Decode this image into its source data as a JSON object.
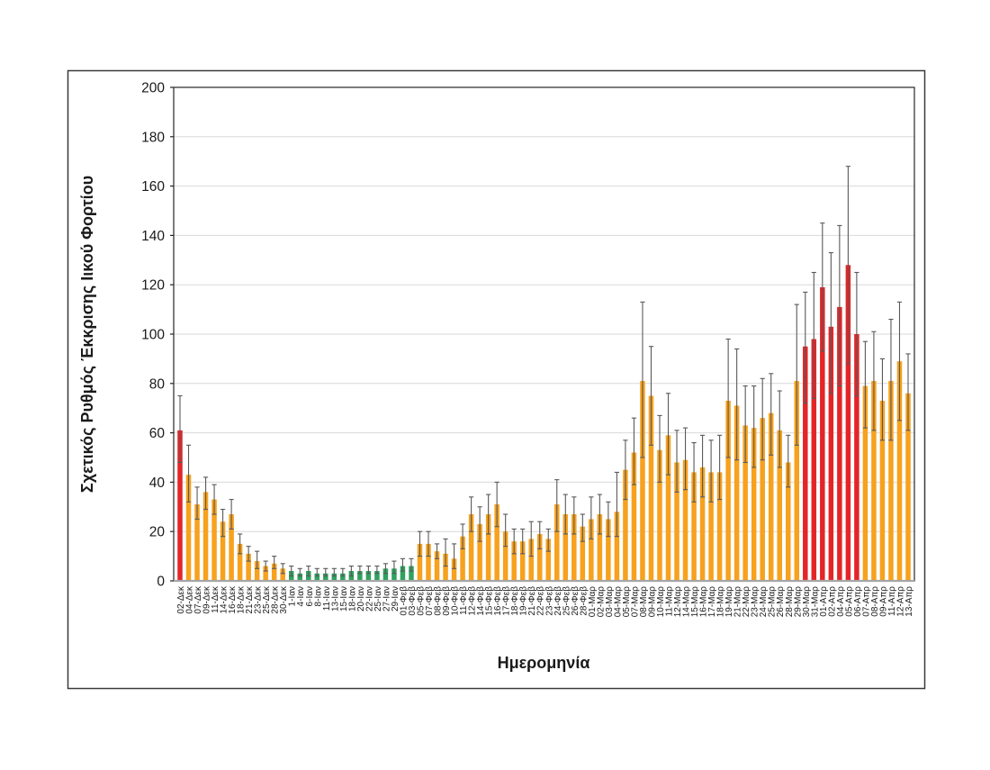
{
  "page": {
    "background": "#ffffff"
  },
  "figure": {
    "border_color": "#3a3a3a",
    "background": "#ffffff"
  },
  "chart_data": {
    "type": "bar",
    "title": "",
    "xlabel": "Ημερομηνία",
    "ylabel": "Σχετικός Ρυθμός Έκκρισης Ιικού Φορτίου",
    "ylim": [
      0,
      200
    ],
    "ytick_step": 20,
    "grid": true,
    "legend_position": "none",
    "error_bars": true,
    "bar_colors": {
      "red": "#E42528",
      "orange": "#F7A11D",
      "green": "#2EA25E"
    },
    "error_bar_color": "#595959",
    "grid_color": "#d9d9d9",
    "axis_color": "#262626",
    "x_axis_line_color": "#a6a6a6",
    "text_color": "#1a1a1a",
    "points": [
      {
        "label": "02-Δεκ",
        "value": 61,
        "lo": 48,
        "hi": 75,
        "color": "red"
      },
      {
        "label": "04-Δεκ",
        "value": 43,
        "lo": 32,
        "hi": 55,
        "color": "orange"
      },
      {
        "label": "07-Δεκ",
        "value": 31,
        "lo": 25,
        "hi": 38,
        "color": "orange"
      },
      {
        "label": "09-Δεκ",
        "value": 36,
        "lo": 29,
        "hi": 42,
        "color": "orange"
      },
      {
        "label": "11-Δεκ",
        "value": 33,
        "lo": 27,
        "hi": 39,
        "color": "orange"
      },
      {
        "label": "14-Δεκ",
        "value": 24,
        "lo": 18,
        "hi": 29,
        "color": "orange"
      },
      {
        "label": "16-Δεκ",
        "value": 27,
        "lo": 21,
        "hi": 33,
        "color": "orange"
      },
      {
        "label": "18-Δεκ",
        "value": 15,
        "lo": 11,
        "hi": 19,
        "color": "orange"
      },
      {
        "label": "21-Δεκ",
        "value": 11,
        "lo": 8,
        "hi": 14,
        "color": "orange"
      },
      {
        "label": "23-Δεκ",
        "value": 8,
        "lo": 5,
        "hi": 12,
        "color": "orange"
      },
      {
        "label": "25-Δεκ",
        "value": 6,
        "lo": 4,
        "hi": 8,
        "color": "orange"
      },
      {
        "label": "28-Δεκ",
        "value": 7,
        "lo": 5,
        "hi": 10,
        "color": "orange"
      },
      {
        "label": "30-Δεκ",
        "value": 5,
        "lo": 3,
        "hi": 7,
        "color": "orange"
      },
      {
        "label": "1-Ιαν",
        "value": 4,
        "lo": 2,
        "hi": 6,
        "color": "green"
      },
      {
        "label": "4-Ιαν",
        "value": 3,
        "lo": 2,
        "hi": 5,
        "color": "green"
      },
      {
        "label": "6-Ιαν",
        "value": 4,
        "lo": 2,
        "hi": 6,
        "color": "green"
      },
      {
        "label": "8-Ιαν",
        "value": 3,
        "lo": 2,
        "hi": 5,
        "color": "green"
      },
      {
        "label": "11-Ιαν",
        "value": 3,
        "lo": 2,
        "hi": 5,
        "color": "green"
      },
      {
        "label": "13-Ιαν",
        "value": 3,
        "lo": 2,
        "hi": 5,
        "color": "green"
      },
      {
        "label": "15-Ιαν",
        "value": 3,
        "lo": 2,
        "hi": 5,
        "color": "green"
      },
      {
        "label": "18-Ιαν",
        "value": 4,
        "lo": 2,
        "hi": 6,
        "color": "green"
      },
      {
        "label": "20-Ιαν",
        "value": 4,
        "lo": 3,
        "hi": 6,
        "color": "green"
      },
      {
        "label": "22-Ιαν",
        "value": 4,
        "lo": 3,
        "hi": 6,
        "color": "green"
      },
      {
        "label": "25-Ιαν",
        "value": 4,
        "lo": 3,
        "hi": 6,
        "color": "green"
      },
      {
        "label": "27-Ιαν",
        "value": 5,
        "lo": 3,
        "hi": 7,
        "color": "green"
      },
      {
        "label": "29-Ιαν",
        "value": 5,
        "lo": 3,
        "hi": 8,
        "color": "green"
      },
      {
        "label": "01-Φεβ",
        "value": 6,
        "lo": 4,
        "hi": 9,
        "color": "green"
      },
      {
        "label": "03-Φεβ",
        "value": 6,
        "lo": 4,
        "hi": 9,
        "color": "green"
      },
      {
        "label": "05-Φεβ",
        "value": 15,
        "lo": 10,
        "hi": 20,
        "color": "orange"
      },
      {
        "label": "07-Φεβ",
        "value": 15,
        "lo": 10,
        "hi": 20,
        "color": "orange"
      },
      {
        "label": "08-Φεβ",
        "value": 12,
        "lo": 9,
        "hi": 15,
        "color": "orange"
      },
      {
        "label": "09-Φεβ",
        "value": 11,
        "lo": 6,
        "hi": 17,
        "color": "orange"
      },
      {
        "label": "10-Φεβ",
        "value": 9,
        "lo": 5,
        "hi": 15,
        "color": "orange"
      },
      {
        "label": "11-Φεβ",
        "value": 18,
        "lo": 13,
        "hi": 23,
        "color": "orange"
      },
      {
        "label": "12-Φεβ",
        "value": 27,
        "lo": 20,
        "hi": 34,
        "color": "orange"
      },
      {
        "label": "14-Φεβ",
        "value": 23,
        "lo": 16,
        "hi": 30,
        "color": "orange"
      },
      {
        "label": "15-Φεβ",
        "value": 27,
        "lo": 19,
        "hi": 35,
        "color": "orange"
      },
      {
        "label": "16-Φεβ",
        "value": 31,
        "lo": 22,
        "hi": 40,
        "color": "orange"
      },
      {
        "label": "17-Φεβ",
        "value": 20,
        "lo": 14,
        "hi": 27,
        "color": "orange"
      },
      {
        "label": "18-Φεβ",
        "value": 16,
        "lo": 11,
        "hi": 21,
        "color": "orange"
      },
      {
        "label": "19-Φεβ",
        "value": 16,
        "lo": 11,
        "hi": 21,
        "color": "orange"
      },
      {
        "label": "21-Φεβ",
        "value": 17,
        "lo": 10,
        "hi": 24,
        "color": "orange"
      },
      {
        "label": "22-Φεβ",
        "value": 19,
        "lo": 13,
        "hi": 24,
        "color": "orange"
      },
      {
        "label": "23-Φεβ",
        "value": 17,
        "lo": 12,
        "hi": 21,
        "color": "orange"
      },
      {
        "label": "24-Φεβ",
        "value": 31,
        "lo": 20,
        "hi": 41,
        "color": "orange"
      },
      {
        "label": "25-Φεβ",
        "value": 27,
        "lo": 19,
        "hi": 35,
        "color": "orange"
      },
      {
        "label": "26-Φεβ",
        "value": 27,
        "lo": 19,
        "hi": 34,
        "color": "orange"
      },
      {
        "label": "28-Φεβ",
        "value": 22,
        "lo": 16,
        "hi": 27,
        "color": "orange"
      },
      {
        "label": "01-Μαρ",
        "value": 25,
        "lo": 17,
        "hi": 34,
        "color": "orange"
      },
      {
        "label": "02-Μαρ",
        "value": 27,
        "lo": 19,
        "hi": 35,
        "color": "orange"
      },
      {
        "label": "03-Μαρ",
        "value": 25,
        "lo": 18,
        "hi": 32,
        "color": "orange"
      },
      {
        "label": "04-Μαρ",
        "value": 28,
        "lo": 18,
        "hi": 44,
        "color": "orange"
      },
      {
        "label": "05-Μαρ",
        "value": 45,
        "lo": 33,
        "hi": 57,
        "color": "orange"
      },
      {
        "label": "07-Μαρ",
        "value": 52,
        "lo": 39,
        "hi": 66,
        "color": "orange"
      },
      {
        "label": "08-Μαρ",
        "value": 81,
        "lo": 50,
        "hi": 113,
        "color": "orange"
      },
      {
        "label": "09-Μαρ",
        "value": 75,
        "lo": 55,
        "hi": 95,
        "color": "orange"
      },
      {
        "label": "10-Μαρ",
        "value": 53,
        "lo": 40,
        "hi": 67,
        "color": "orange"
      },
      {
        "label": "11-Μαρ",
        "value": 59,
        "lo": 43,
        "hi": 76,
        "color": "orange"
      },
      {
        "label": "12-Μαρ",
        "value": 48,
        "lo": 36,
        "hi": 61,
        "color": "orange"
      },
      {
        "label": "14-Μαρ",
        "value": 49,
        "lo": 37,
        "hi": 62,
        "color": "orange"
      },
      {
        "label": "15-Μαρ",
        "value": 44,
        "lo": 32,
        "hi": 56,
        "color": "orange"
      },
      {
        "label": "16-Μαρ",
        "value": 46,
        "lo": 34,
        "hi": 59,
        "color": "orange"
      },
      {
        "label": "17-Μαρ",
        "value": 44,
        "lo": 32,
        "hi": 57,
        "color": "orange"
      },
      {
        "label": "18-Μαρ",
        "value": 44,
        "lo": 33,
        "hi": 59,
        "color": "orange"
      },
      {
        "label": "19-Μαρ",
        "value": 73,
        "lo": 50,
        "hi": 98,
        "color": "orange"
      },
      {
        "label": "21-Μαρ",
        "value": 71,
        "lo": 49,
        "hi": 94,
        "color": "orange"
      },
      {
        "label": "22-Μαρ",
        "value": 63,
        "lo": 48,
        "hi": 79,
        "color": "orange"
      },
      {
        "label": "23-Μαρ",
        "value": 62,
        "lo": 46,
        "hi": 79,
        "color": "orange"
      },
      {
        "label": "24-Μαρ",
        "value": 66,
        "lo": 49,
        "hi": 82,
        "color": "orange"
      },
      {
        "label": "25-Μαρ",
        "value": 68,
        "lo": 51,
        "hi": 84,
        "color": "orange"
      },
      {
        "label": "26-Μαρ",
        "value": 61,
        "lo": 46,
        "hi": 77,
        "color": "orange"
      },
      {
        "label": "28-Μαρ",
        "value": 48,
        "lo": 38,
        "hi": 59,
        "color": "orange"
      },
      {
        "label": "29-Μαρ",
        "value": 81,
        "lo": 55,
        "hi": 112,
        "color": "orange"
      },
      {
        "label": "30-Μαρ",
        "value": 95,
        "lo": 72,
        "hi": 117,
        "color": "red"
      },
      {
        "label": "31-Μαρ",
        "value": 98,
        "lo": 74,
        "hi": 125,
        "color": "red"
      },
      {
        "label": "01-Απρ",
        "value": 119,
        "lo": 93,
        "hi": 145,
        "color": "red"
      },
      {
        "label": "02-Απρ",
        "value": 103,
        "lo": 76,
        "hi": 133,
        "color": "red"
      },
      {
        "label": "04-Απρ",
        "value": 111,
        "lo": 79,
        "hi": 144,
        "color": "red"
      },
      {
        "label": "05-Απρ",
        "value": 128,
        "lo": 88,
        "hi": 168,
        "color": "red"
      },
      {
        "label": "06-Απρ",
        "value": 100,
        "lo": 75,
        "hi": 125,
        "color": "red"
      },
      {
        "label": "07-Απρ",
        "value": 79,
        "lo": 62,
        "hi": 97,
        "color": "orange"
      },
      {
        "label": "08-Απρ",
        "value": 81,
        "lo": 61,
        "hi": 101,
        "color": "orange"
      },
      {
        "label": "09-Απρ",
        "value": 73,
        "lo": 57,
        "hi": 90,
        "color": "orange"
      },
      {
        "label": "11-Απρ",
        "value": 81,
        "lo": 57,
        "hi": 106,
        "color": "orange"
      },
      {
        "label": "12-Απρ",
        "value": 89,
        "lo": 65,
        "hi": 113,
        "color": "orange"
      },
      {
        "label": "13-Απρ",
        "value": 76,
        "lo": 61,
        "hi": 92,
        "color": "orange"
      }
    ]
  }
}
